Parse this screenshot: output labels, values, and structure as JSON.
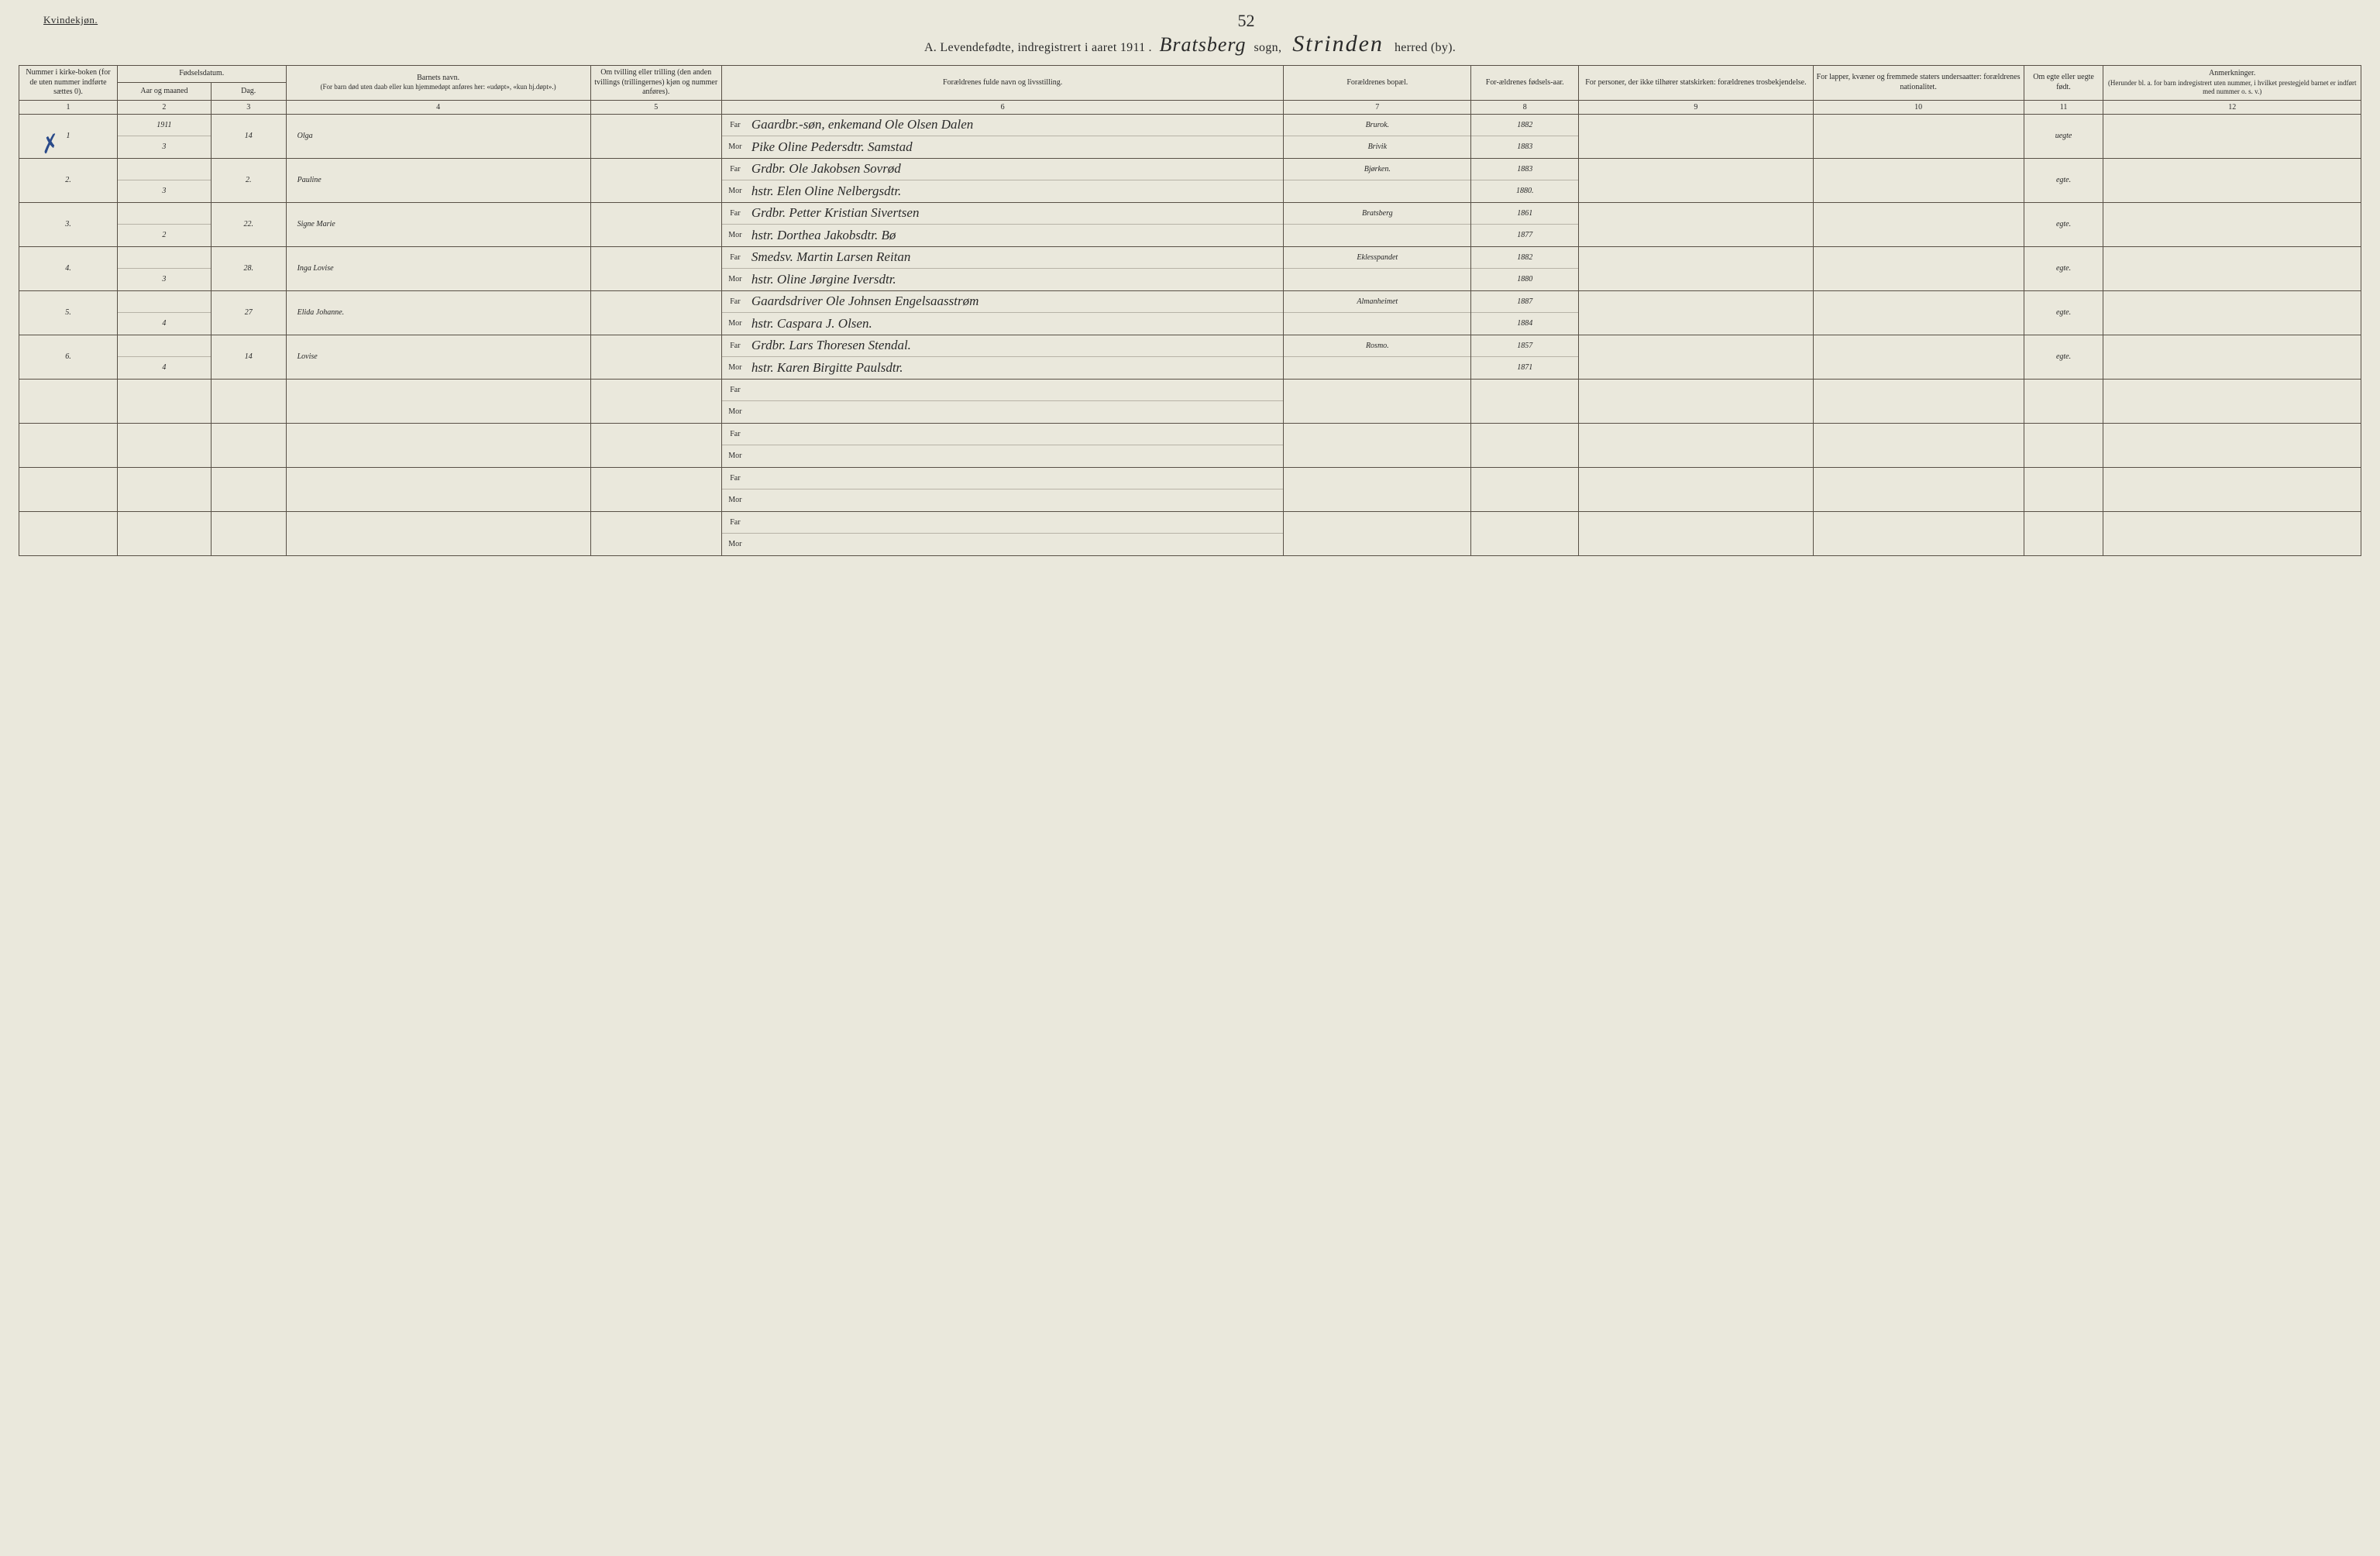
{
  "doc": {
    "gender_label": "Kvindekjøn.",
    "page_number_hand": "52",
    "title_prefix": "A.  Levendefødte, indregistrert i aaret 191",
    "year_suffix": "1",
    "parish_hand": "Bratsberg",
    "sogn_label": "sogn,",
    "district_hand": "Strinden",
    "herred_label": "herred (by).",
    "background_color": "#eae8dc",
    "border_color": "#585046"
  },
  "columns": {
    "c1": "Nummer i kirke-boken (for de uten nummer indførte sættes 0).",
    "c2_group": "Fødselsdatum.",
    "c2": "Aar og maaned",
    "c3": "Dag.",
    "c4": "Barnets navn.",
    "c4_sub": "(For barn død uten daab eller kun hjemmedøpt anføres her: «udøpt», «kun hj.døpt».)",
    "c5": "Om tvilling eller trilling (den anden tvillings (trillingernes) kjøn og nummer anføres).",
    "c6": "Forældrenes fulde navn og livsstilling.",
    "c7": "Forældrenes bopæl.",
    "c8": "For-ældrenes fødsels-aar.",
    "c9": "For personer, der ikke tilhører statskirken: forældrenes trosbekjendelse.",
    "c10": "For lapper, kvæner og fremmede staters undersaatter: forældrenes nationalitet.",
    "c11": "Om egte eller uegte født.",
    "c12": "Anmerkninger.",
    "c12_sub": "(Herunder bl. a. for barn indregistrert uten nummer, i hvilket prestegjeld barnet er indført med nummer o. s. v.)",
    "far": "Far",
    "mor": "Mor",
    "nums": [
      "1",
      "2",
      "3",
      "4",
      "5",
      "6",
      "7",
      "8",
      "9",
      "10",
      "11",
      "12"
    ]
  },
  "rows": [
    {
      "num": "1",
      "year_month_top": "1911",
      "year_month_bot": "3",
      "day": "14",
      "name": "Olga",
      "far": "Gaardbr.-søn, enkemand Ole Olsen Dalen",
      "mor": "Pike Oline Pedersdtr. Samstad",
      "bopael_top": "Brurok.",
      "bopael_bot": "Brivik",
      "byear_top": "1882",
      "byear_bot": "1883",
      "legit": "uegte",
      "tick": true
    },
    {
      "num": "2.",
      "year_month_top": "",
      "year_month_bot": "3",
      "day": "2.",
      "name": "Pauline",
      "far": "Grdbr. Ole Jakobsen Sovrød",
      "mor": "hstr. Elen Oline Nelbergsdtr.",
      "bopael_top": "Bjørken.",
      "bopael_bot": "",
      "byear_top": "1883",
      "byear_bot": "1880.",
      "legit": "egte."
    },
    {
      "num": "3.",
      "year_month_top": "",
      "year_month_bot": "2",
      "day": "22.",
      "name": "Signe Marie",
      "far": "Grdbr. Petter Kristian Sivertsen",
      "mor": "hstr. Dorthea Jakobsdtr. Bø",
      "bopael_top": "Bratsberg",
      "bopael_bot": "",
      "byear_top": "1861",
      "byear_bot": "1877",
      "legit": "egte."
    },
    {
      "num": "4.",
      "year_month_top": "",
      "year_month_bot": "3",
      "day": "28.",
      "name": "Inga Lovise",
      "far": "Smedsv. Martin Larsen Reitan",
      "mor": "hstr. Oline Jørgine Iversdtr.",
      "bopael_top": "Eklesspandet",
      "bopael_bot": "",
      "byear_top": "1882",
      "byear_bot": "1880",
      "legit": "egte."
    },
    {
      "num": "5.",
      "year_month_top": "",
      "year_month_bot": "4",
      "day": "27",
      "name": "Elida Johanne.",
      "far": "Gaardsdriver Ole Johnsen Engelsaasstrøm",
      "mor": "hstr. Caspara J. Olsen.",
      "bopael_top": "Almanheimet",
      "bopael_bot": "",
      "byear_top": "1887",
      "byear_bot": "1884",
      "legit": "egte."
    },
    {
      "num": "6.",
      "year_month_top": "",
      "year_month_bot": "4",
      "day": "14",
      "name": "Lovise",
      "far": "Grdbr. Lars Thoresen Stendal.",
      "mor": "hstr. Karen Birgitte Paulsdtr.",
      "bopael_top": "Rosmo.",
      "bopael_bot": "",
      "byear_top": "1857",
      "byear_bot": "1871",
      "legit": "egte."
    },
    {
      "empty": true
    },
    {
      "empty": true
    },
    {
      "empty": true
    },
    {
      "empty": true
    }
  ],
  "widths_pct": [
    4.2,
    4.0,
    3.2,
    13.0,
    5.6,
    24.0,
    8.0,
    4.6,
    10.0,
    9.0,
    3.4,
    11.0
  ]
}
